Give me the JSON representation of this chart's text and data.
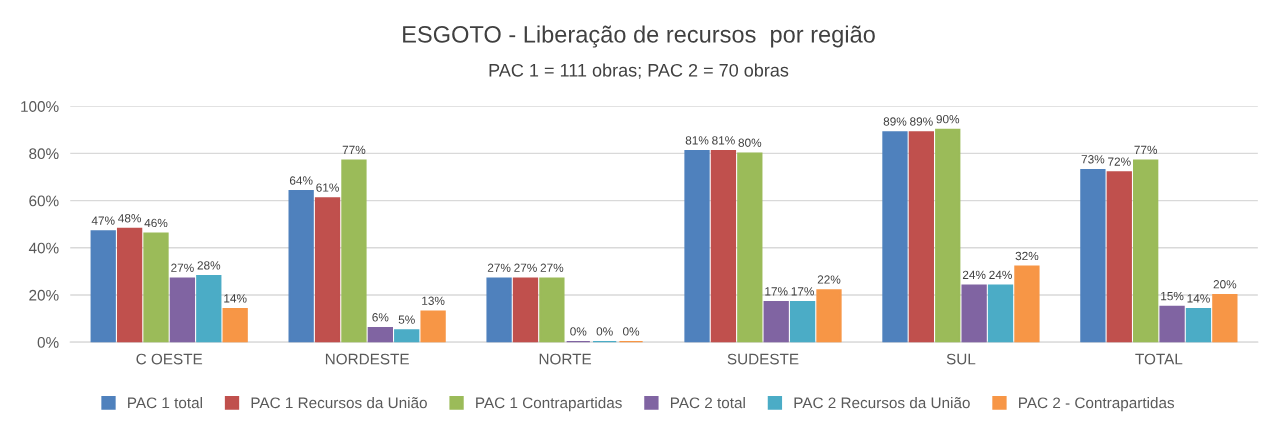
{
  "chart_data": {
    "type": "bar",
    "title": "ESGOTO - Liberação de recursos  por região",
    "subtitle": "PAC 1 = 111 obras; PAC 2 = 70 obras",
    "categories": [
      "C OESTE",
      "NORDESTE",
      "NORTE",
      "SUDESTE",
      "SUL",
      "TOTAL"
    ],
    "series": [
      {
        "name": "PAC 1 total",
        "color": "#4f81bd",
        "values": [
          47,
          64,
          27,
          81,
          89,
          73
        ],
        "value_labels": [
          "47%",
          "64%",
          "27%",
          "81%",
          "89%",
          "73%"
        ]
      },
      {
        "name": "PAC 1 Recursos da União",
        "color": "#c0504d",
        "values": [
          48,
          61,
          27,
          81,
          89,
          72
        ],
        "value_labels": [
          "48%",
          "61%",
          "27%",
          "81%",
          "89%",
          "72%"
        ]
      },
      {
        "name": "PAC 1 Contrapartidas",
        "color": "#9bbb59",
        "values": [
          46,
          77,
          27,
          80,
          90,
          77
        ],
        "value_labels": [
          "46%",
          "77%",
          "27%",
          "80%",
          "90%",
          "77%"
        ]
      },
      {
        "name": "PAC 2 total",
        "color": "#8064a2",
        "values": [
          27,
          6,
          0,
          17,
          24,
          15
        ],
        "value_labels": [
          "27%",
          "6%",
          "0%",
          "17%",
          "24%",
          "15%"
        ]
      },
      {
        "name": "PAC 2 Recursos da União",
        "color": "#4bacc6",
        "values": [
          28,
          5,
          0,
          17,
          24,
          14
        ],
        "value_labels": [
          "28%",
          "5%",
          "0%",
          "17%",
          "24%",
          "14%"
        ]
      },
      {
        "name": "PAC 2 - Contrapartidas",
        "color": "#f79646",
        "values": [
          14,
          13,
          0,
          22,
          32,
          20
        ],
        "value_labels": [
          "14%",
          "13%",
          "0%",
          "22%",
          "32%",
          "20%"
        ]
      }
    ],
    "ylim": [
      0,
      100
    ],
    "yticks": [
      {
        "value": 0,
        "label": "0%"
      },
      {
        "value": 20,
        "label": "20%"
      },
      {
        "value": 40,
        "label": "40%"
      },
      {
        "value": 60,
        "label": "60%"
      },
      {
        "value": 80,
        "label": "80%"
      },
      {
        "value": 100,
        "label": "100%"
      }
    ],
    "grid": "y",
    "legend": "bottom"
  }
}
